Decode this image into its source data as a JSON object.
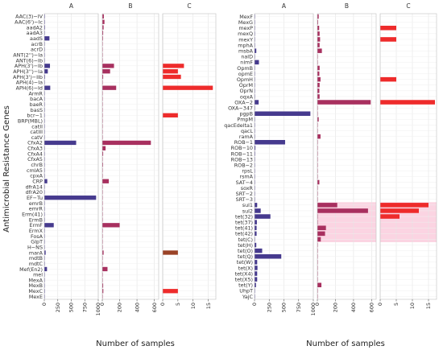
{
  "chart_data": {
    "type": "bar",
    "orientation": "horizontal",
    "ylabel": "Antimicrobial Resistance Genes",
    "xlabel": "Number of samples",
    "grid": true,
    "legend": "none",
    "facets": [
      "A",
      "B",
      "C"
    ],
    "colors": {
      "A": "#463a8e",
      "B": "#a8305f",
      "C": "#ee2b2b",
      "highlight": "#fbd4e2",
      "grid": "#e4e4e4",
      "panel_border": "#bfbfbf"
    },
    "xaxis": [
      {
        "facet": "A",
        "range": [
          0,
          1000
        ],
        "ticks": [
          0,
          250,
          500,
          750,
          1000
        ]
      },
      {
        "facet": "B",
        "range": [
          0,
          650
        ],
        "ticks": [
          0,
          200,
          400,
          600
        ]
      },
      {
        "facet": "C",
        "range": [
          0,
          17.5
        ],
        "ticks": [
          0,
          5,
          10,
          15
        ]
      }
    ],
    "panels": [
      {
        "genes": [
          "AAC(3)−IV",
          "AAC(6')−Ic",
          "aadA2",
          "aadA3",
          "aadS",
          "acrB",
          "acrD",
          "ANT(2'')−Ia",
          "ANT(6)−Ib",
          "APH(3')−Ib",
          "APH(3'')−Ia",
          "APH(3')−IIb",
          "APH(4)−Ia",
          "APH(6)−Id",
          "ArmR",
          "bacA",
          "baeR",
          "basS",
          "bcr−1",
          "BRP(MBL)",
          "catII",
          "catIII",
          "catV",
          "CfxA2",
          "CfxA3",
          "CfxA4",
          "CfxA5",
          "chrB",
          "cmlA5",
          "cpxA",
          "CRP",
          "dfrA14",
          "dfrA20",
          "EF−Tu",
          "emrB",
          "emrR",
          "Erm(41)",
          "ErmB",
          "ErmF",
          "ErmX",
          "FosA",
          "GlpT",
          "H−NS",
          "marA",
          "mdtB",
          "mdtC",
          "Mef(En2)",
          "mel",
          "MexA",
          "MexB",
          "MexC",
          "MexE"
        ],
        "series": [
          {
            "name": "A",
            "values": [
              10,
              10,
              12,
              8,
              95,
              6,
              6,
              6,
              6,
              105,
              65,
              12,
              6,
              110,
              6,
              6,
              6,
              6,
              6,
              6,
              6,
              6,
              6,
              590,
              8,
              6,
              6,
              6,
              6,
              6,
              55,
              6,
              6,
              960,
              6,
              6,
              6,
              6,
              175,
              6,
              6,
              6,
              6,
              25,
              6,
              6,
              50,
              6,
              6,
              6,
              10,
              6
            ]
          },
          {
            "name": "B",
            "values": [
              18,
              25,
              15,
              10,
              8,
              5,
              5,
              5,
              5,
              135,
              90,
              10,
              5,
              160,
              5,
              5,
              5,
              5,
              5,
              5,
              5,
              5,
              5,
              560,
              38,
              10,
              5,
              8,
              5,
              5,
              75,
              5,
              5,
              5,
              5,
              5,
              5,
              5,
              200,
              5,
              5,
              5,
              5,
              15,
              5,
              5,
              60,
              5,
              5,
              10,
              12,
              5
            ]
          },
          {
            "name": "C",
            "values": [
              0,
              0,
              0,
              0,
              0,
              0,
              0,
              0,
              0,
              7,
              5,
              6,
              0,
              16.5,
              0,
              0,
              0,
              0,
              5,
              0,
              0,
              0,
              0,
              0,
              0,
              0,
              0,
              0,
              0,
              0,
              0,
              0,
              0,
              0,
              0,
              0,
              0,
              0,
              0,
              0,
              0,
              0,
              0,
              5,
              0,
              0,
              0,
              0,
              0,
              0,
              5,
              0
            ]
          }
        ]
      },
      {
        "genes": [
          "MexF",
          "MexG",
          "mexP",
          "mexQ",
          "mexY",
          "mphA",
          "msbA",
          "nalD",
          "nimF",
          "OpmB",
          "opmE",
          "OpmH",
          "OprM",
          "OprN",
          "oqxA",
          "OXA−2",
          "OXA−347",
          "pgpB",
          "PmpM",
          "qacEdelta1",
          "qacL",
          "ramA",
          "ROB−1",
          "ROB−10",
          "ROB−11",
          "ROB−13",
          "ROB−2",
          "rpsL",
          "rsmA",
          "SAT−4",
          "soxR",
          "SRT−2",
          "SRT−3",
          "sul1",
          "sul2",
          "tet(32)",
          "tet(37)",
          "tet(41)",
          "tet(42)",
          "tet(C)",
          "tet(H)",
          "tet(O)",
          "tet(Q)",
          "tet(W)",
          "tet(X)",
          "tet(X4)",
          "tet(X5)",
          "tet(Y)",
          "UhpT",
          "YajC"
        ],
        "series": [
          {
            "name": "A",
            "values": [
              6,
              6,
              6,
              6,
              6,
              8,
              30,
              6,
              75,
              6,
              6,
              6,
              6,
              6,
              6,
              70,
              6,
              950,
              6,
              6,
              6,
              6,
              520,
              15,
              10,
              8,
              6,
              6,
              6,
              8,
              6,
              6,
              6,
              45,
              105,
              270,
              40,
              35,
              35,
              6,
              30,
              130,
              455,
              45,
              50,
              45,
              45,
              25,
              6,
              6
            ]
          },
          {
            "name": "B",
            "values": [
              15,
              8,
              20,
              25,
              30,
              25,
              50,
              5,
              5,
              25,
              22,
              35,
              25,
              22,
              25,
              590,
              5,
              5,
              15,
              5,
              5,
              35,
              5,
              5,
              5,
              5,
              5,
              5,
              5,
              22,
              5,
              5,
              5,
              220,
              560,
              5,
              5,
              95,
              85,
              38,
              5,
              5,
              5,
              5,
              5,
              5,
              5,
              45,
              5,
              5
            ]
          },
          {
            "name": "C",
            "values": [
              0,
              0,
              5,
              0,
              5,
              0,
              0,
              0,
              0,
              0,
              0,
              5,
              0,
              0,
              0,
              17,
              0,
              0,
              0,
              0,
              0,
              0,
              0,
              0,
              0,
              0,
              0,
              0,
              0,
              0,
              0,
              0,
              0,
              15,
              12,
              6,
              0,
              0,
              0,
              0,
              0,
              0,
              0,
              0,
              0,
              0,
              0,
              0,
              0,
              0
            ]
          }
        ],
        "highlight_ranges": [
          {
            "facet": "B",
            "from": "sul1",
            "to": "tet(C)"
          },
          {
            "facet": "C",
            "from": "sul1",
            "to": "tet(C)"
          }
        ]
      }
    ]
  }
}
